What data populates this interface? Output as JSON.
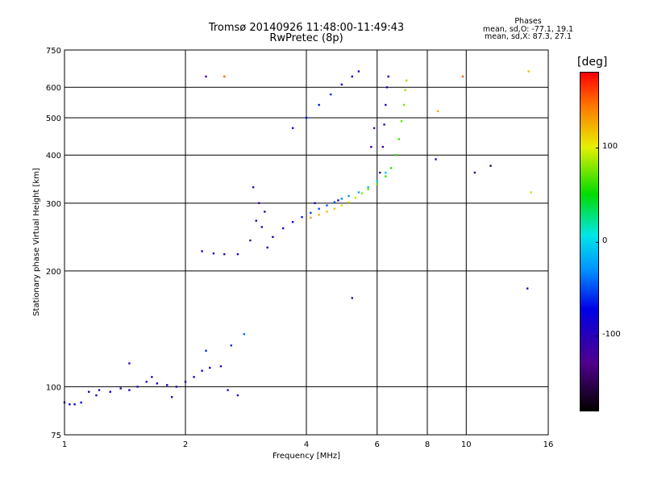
{
  "chart_data": {
    "type": "scatter",
    "title": "Tromsø 20140926 11:48:00-11:49:43",
    "subtitle": "RwPretec (8p)",
    "xlabel": "Frequency [MHz]",
    "ylabel": "Stationary phase Virtual Height [km]",
    "x_scale": "log",
    "y_scale": "log",
    "xlim": [
      1,
      16
    ],
    "ylim": [
      75,
      750
    ],
    "x_ticks": [
      1,
      2,
      4,
      6,
      8,
      10,
      16
    ],
    "y_ticks": [
      75,
      100,
      200,
      300,
      400,
      500,
      600,
      750
    ],
    "grid": true,
    "phases": {
      "heading": "Phases",
      "line_o": "mean, sd,O: -77.1, 19.1",
      "line_x": "mean, sd,X:  87.3, 27.1"
    },
    "colorbar": {
      "label": "[deg]",
      "range": [
        -180,
        180
      ],
      "ticks": [
        100,
        0,
        -100
      ],
      "colormap": "rainbow"
    },
    "series": [
      {
        "points": [
          [
            1.0,
            91,
            -90
          ],
          [
            1.03,
            90,
            -80
          ],
          [
            1.06,
            90,
            -85
          ],
          [
            1.1,
            91,
            -70
          ],
          [
            1.15,
            97,
            -90
          ],
          [
            1.22,
            98,
            -100
          ],
          [
            1.3,
            97,
            -80
          ],
          [
            1.38,
            99,
            -105
          ],
          [
            1.45,
            98,
            -90
          ],
          [
            1.52,
            100,
            -110
          ],
          [
            1.6,
            103,
            -100
          ],
          [
            1.7,
            102,
            -90
          ],
          [
            1.8,
            101,
            -95
          ],
          [
            1.9,
            100,
            -100
          ],
          [
            2.0,
            103,
            -100
          ],
          [
            2.1,
            106,
            -95
          ],
          [
            2.2,
            110,
            -90
          ],
          [
            2.3,
            112,
            -100
          ],
          [
            2.45,
            113,
            -80
          ],
          [
            2.6,
            128,
            -60
          ],
          [
            2.8,
            137,
            -40
          ],
          [
            2.25,
            124,
            -60
          ],
          [
            1.45,
            115,
            -110
          ],
          [
            1.65,
            106,
            -110
          ],
          [
            2.55,
            98,
            -100
          ],
          [
            2.7,
            95,
            -110
          ],
          [
            1.2,
            95,
            -100
          ],
          [
            1.85,
            94,
            -110
          ],
          [
            2.2,
            225,
            -100
          ],
          [
            2.35,
            222,
            -110
          ],
          [
            2.5,
            221,
            -105
          ],
          [
            2.7,
            221,
            -100
          ],
          [
            2.9,
            240,
            -110
          ],
          [
            3.0,
            270,
            -100
          ],
          [
            3.1,
            260,
            -110
          ],
          [
            3.2,
            230,
            -105
          ],
          [
            3.3,
            245,
            -90
          ],
          [
            3.5,
            258,
            -80
          ],
          [
            3.7,
            268,
            -70
          ],
          [
            3.9,
            276,
            -65
          ],
          [
            4.1,
            283,
            -55
          ],
          [
            4.3,
            290,
            -50
          ],
          [
            4.5,
            296,
            -45
          ],
          [
            4.7,
            302,
            -40
          ],
          [
            4.9,
            308,
            -35
          ],
          [
            5.1,
            313,
            -30
          ],
          [
            5.4,
            320,
            -20
          ],
          [
            5.7,
            330,
            -10
          ],
          [
            6.0,
            342,
            0
          ],
          [
            6.3,
            360,
            -10
          ],
          [
            2.95,
            330,
            -110
          ],
          [
            3.05,
            300,
            -120
          ],
          [
            3.15,
            285,
            -105
          ],
          [
            4.2,
            300,
            -100
          ],
          [
            4.8,
            305,
            -90
          ],
          [
            3.7,
            470,
            -80
          ],
          [
            4.0,
            500,
            -70
          ],
          [
            4.3,
            540,
            -65
          ],
          [
            4.6,
            575,
            -60
          ],
          [
            4.9,
            610,
            -70
          ],
          [
            5.2,
            640,
            -80
          ],
          [
            5.4,
            660,
            -85
          ]
        ]
      },
      {
        "points": [
          [
            4.1,
            275,
            130
          ],
          [
            4.3,
            280,
            125
          ],
          [
            4.5,
            285,
            120
          ],
          [
            4.7,
            290,
            115
          ],
          [
            4.9,
            296,
            110
          ],
          [
            5.1,
            302,
            100
          ],
          [
            5.3,
            310,
            90
          ],
          [
            5.5,
            318,
            80
          ],
          [
            5.7,
            326,
            75
          ],
          [
            6.0,
            336,
            70
          ],
          [
            6.3,
            352,
            65
          ],
          [
            6.5,
            370,
            60
          ],
          [
            6.7,
            400,
            60
          ],
          [
            6.8,
            440,
            65
          ],
          [
            6.9,
            490,
            70
          ],
          [
            7.0,
            540,
            75
          ],
          [
            7.05,
            590,
            80
          ],
          [
            7.1,
            625,
            85
          ],
          [
            8.5,
            520,
            125
          ],
          [
            9.8,
            640,
            150
          ],
          [
            14.5,
            320,
            90
          ],
          [
            14.3,
            660,
            120
          ]
        ]
      },
      {
        "points": [
          [
            6.1,
            360,
            -110
          ],
          [
            6.2,
            420,
            -120
          ],
          [
            6.25,
            480,
            -115
          ],
          [
            6.3,
            540,
            -110
          ],
          [
            6.35,
            600,
            -100
          ],
          [
            6.4,
            640,
            -90
          ],
          [
            5.8,
            420,
            -120
          ],
          [
            5.9,
            470,
            -130
          ],
          [
            5.2,
            170,
            -110
          ],
          [
            8.4,
            390,
            -100
          ],
          [
            10.5,
            360,
            -140
          ],
          [
            11.5,
            375,
            -150
          ],
          [
            14.2,
            180,
            -100
          ],
          [
            2.25,
            640,
            -120
          ],
          [
            2.5,
            640,
            150
          ]
        ]
      }
    ]
  }
}
